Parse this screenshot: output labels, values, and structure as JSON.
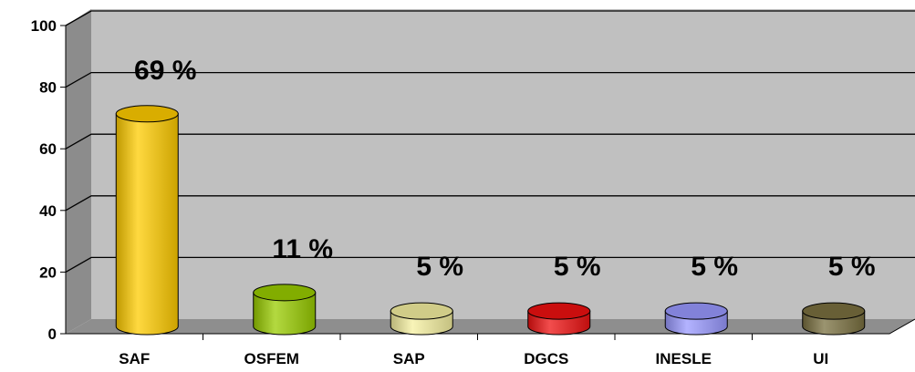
{
  "chart_data": {
    "type": "bar",
    "categories": [
      "SAF",
      "OSFEM",
      "SAP",
      "DGCS",
      "INESLE",
      "UI"
    ],
    "values": [
      69,
      11,
      5,
      5,
      5,
      5
    ],
    "data_labels": [
      "69 %",
      "11 %",
      "5 %",
      "5 %",
      "5 %",
      "5 %"
    ],
    "colors": [
      "#ffcc00",
      "#99cc00",
      "#f5f0a0",
      "#ee1111",
      "#9999ff",
      "#7a7040"
    ],
    "ylim": [
      0,
      100
    ],
    "yticks": [
      0,
      20,
      40,
      60,
      80,
      100
    ],
    "ytick_labels": [
      "0",
      "20",
      "40",
      "60",
      "80",
      "100"
    ],
    "grid": true,
    "style": "3d-cylinder",
    "plot_background": "#c0c0c0"
  }
}
